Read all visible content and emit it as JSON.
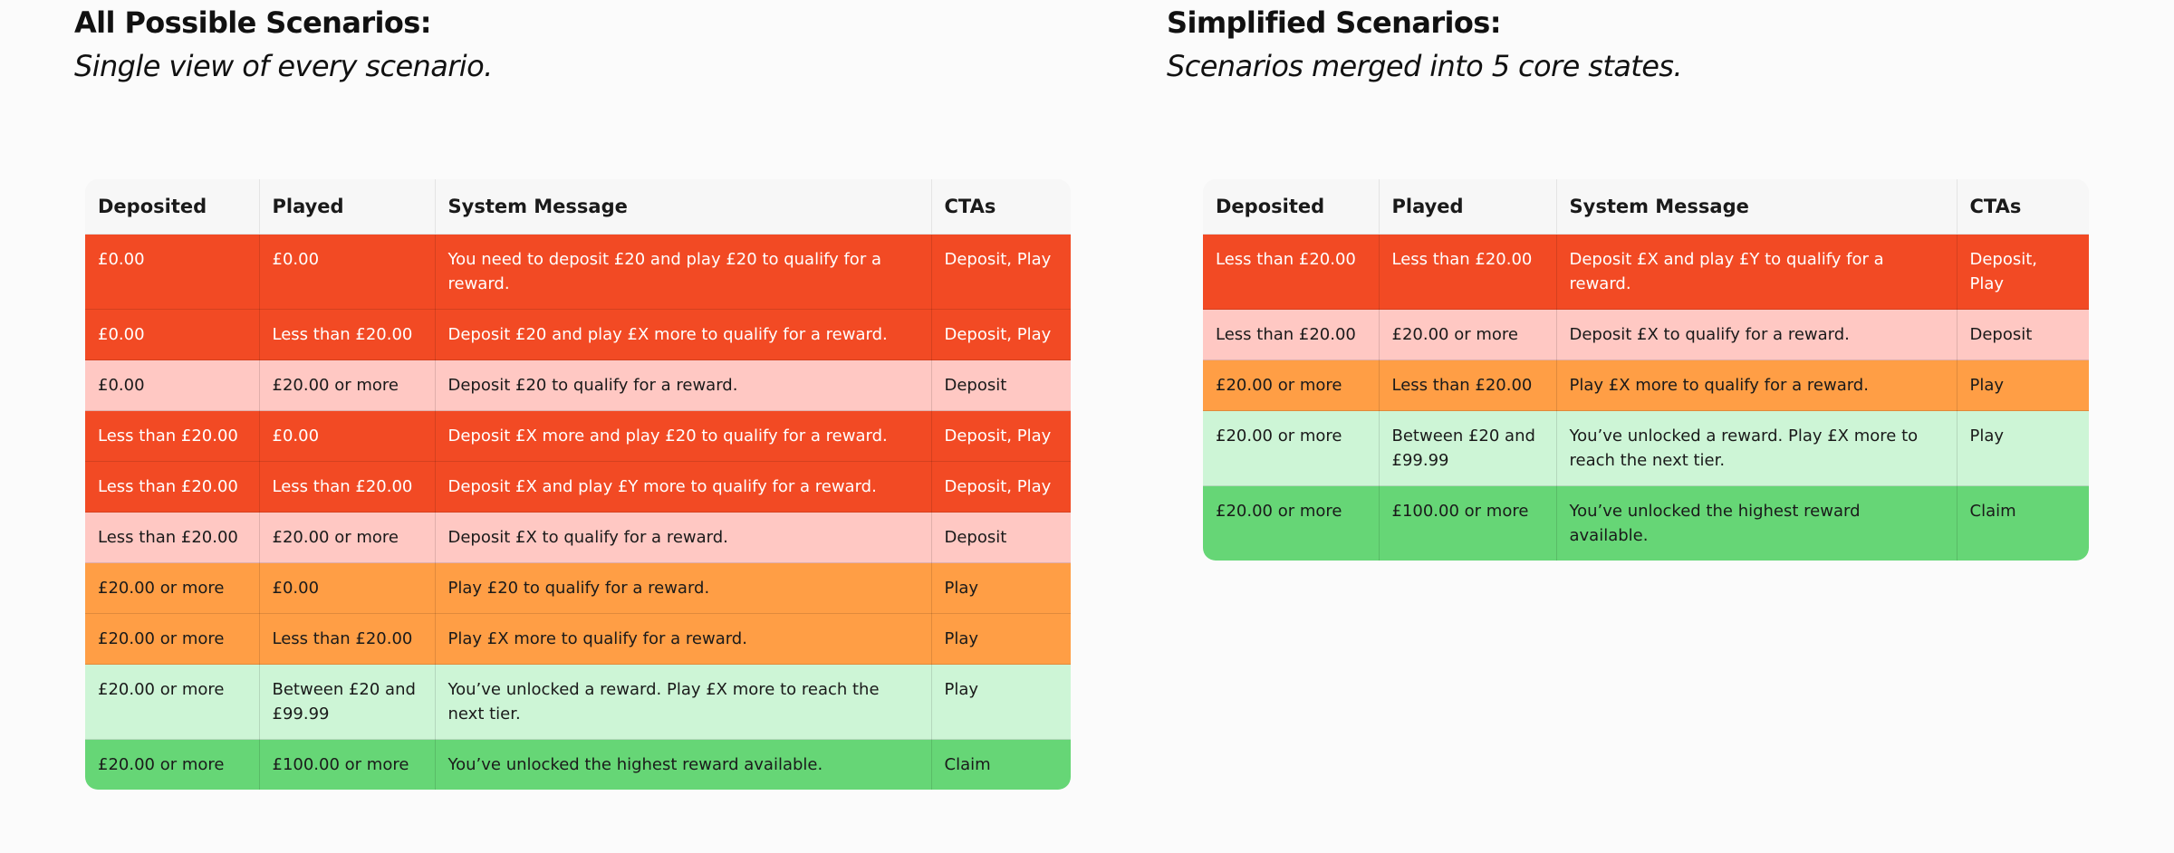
{
  "colors": {
    "red": "#f24a24",
    "pink": "#ffc8c3",
    "orange": "#ff9e45",
    "lightgreen": "#cdf5d6",
    "green": "#66d676",
    "header": "#f7f7f7"
  },
  "left": {
    "title": "All Possible Scenarios:",
    "subtitle": "Single view of every scenario.",
    "columns": [
      "Deposited",
      "Played",
      "System Message",
      "CTAs"
    ],
    "rows": [
      {
        "status": "red",
        "deposited": "£0.00",
        "played": "£0.00",
        "message": "You need to deposit £20 and play £20 to qualify for a reward.",
        "ctas": "Deposit, Play"
      },
      {
        "status": "red",
        "deposited": "£0.00",
        "played": "Less than £20.00",
        "message": "Deposit £20 and play £X more to qualify for a reward.",
        "ctas": "Deposit, Play"
      },
      {
        "status": "pink",
        "deposited": "£0.00",
        "played": "£20.00 or more",
        "message": "Deposit £20 to qualify for a reward.",
        "ctas": "Deposit"
      },
      {
        "status": "red",
        "deposited": "Less than £20.00",
        "played": "£0.00",
        "message": "Deposit £X more and play £20 to qualify for a reward.",
        "ctas": "Deposit, Play"
      },
      {
        "status": "red",
        "deposited": "Less than £20.00",
        "played": "Less than £20.00",
        "message": "Deposit £X and play £Y more to qualify for a reward.",
        "ctas": "Deposit, Play"
      },
      {
        "status": "pink",
        "deposited": "Less than £20.00",
        "played": "£20.00 or more",
        "message": "Deposit £X to qualify for a reward.",
        "ctas": "Deposit"
      },
      {
        "status": "orange",
        "deposited": "£20.00 or more",
        "played": "£0.00",
        "message": "Play £20 to qualify for a reward.",
        "ctas": "Play"
      },
      {
        "status": "orange",
        "deposited": "£20.00 or more",
        "played": "Less than £20.00",
        "message": "Play £X more to qualify for a reward.",
        "ctas": "Play"
      },
      {
        "status": "lightgreen",
        "deposited": "£20.00 or more",
        "played": "Between £20 and £99.99",
        "message": "You’ve unlocked a reward. Play £X more to reach the next tier.",
        "ctas": "Play"
      },
      {
        "status": "green",
        "deposited": "£20.00 or more",
        "played": "£100.00 or more",
        "message": "You’ve unlocked the highest reward available.",
        "ctas": "Claim"
      }
    ]
  },
  "right": {
    "title": "Simplified Scenarios:",
    "subtitle": "Scenarios merged into 5 core states.",
    "columns": [
      "Deposited",
      "Played",
      "System Message",
      "CTAs"
    ],
    "rows": [
      {
        "status": "red",
        "deposited": "Less than £20.00",
        "played": "Less than £20.00",
        "message": "Deposit £X and play £Y to qualify for a reward.",
        "ctas": "Deposit, Play"
      },
      {
        "status": "pink",
        "deposited": "Less than £20.00",
        "played": "£20.00 or more",
        "message": " Deposit £X to qualify for a reward.",
        "ctas": "Deposit"
      },
      {
        "status": "orange",
        "deposited": "£20.00 or more",
        "played": "Less than £20.00",
        "message": "Play £X more to qualify for a reward.",
        "ctas": "Play"
      },
      {
        "status": "lightgreen",
        "deposited": "£20.00 or more",
        "played": "Between £20 and £99.99",
        "message": "You’ve unlocked a reward. Play £X more to reach the next tier.",
        "ctas": "Play"
      },
      {
        "status": "green",
        "deposited": "£20.00 or more",
        "played": "£100.00 or more",
        "message": "You’ve unlocked the highest reward available.",
        "ctas": "Claim"
      }
    ]
  }
}
